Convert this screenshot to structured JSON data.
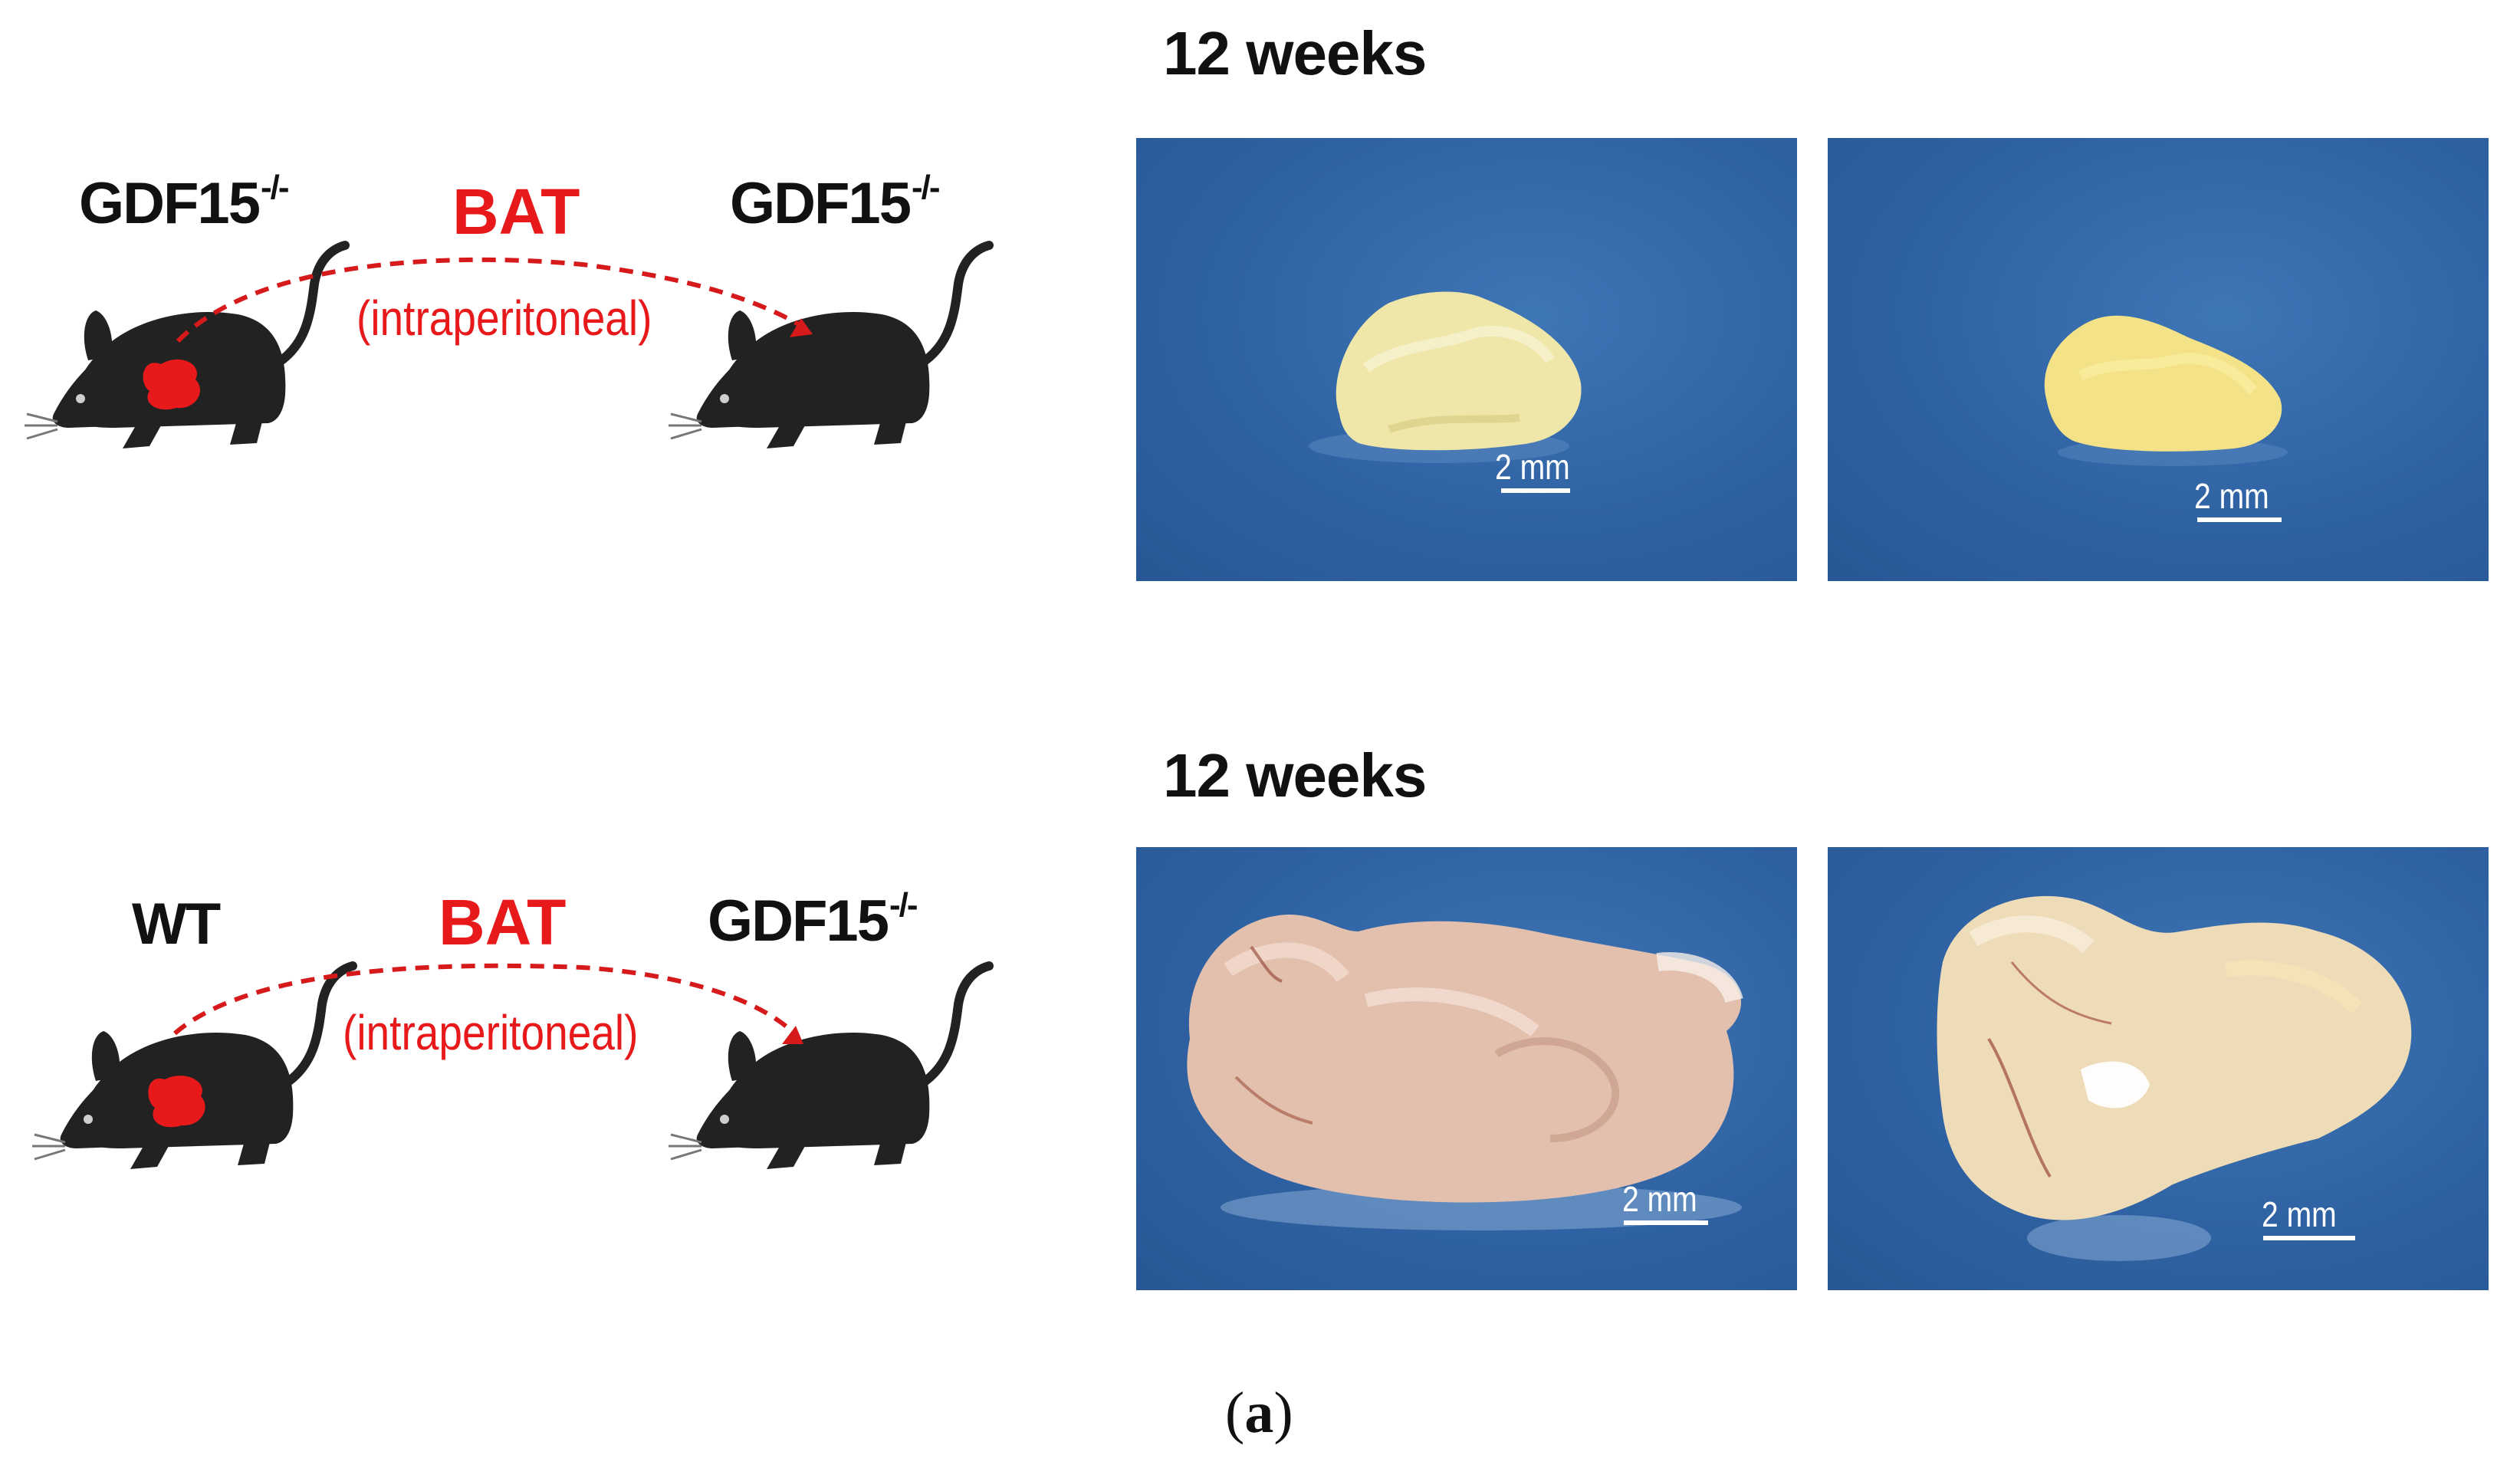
{
  "colors": {
    "accent_red": "#e8191b",
    "photo_blue": "#2f62a3",
    "mouse_black": "#222222"
  },
  "rows": [
    {
      "donor_label": "GDF15",
      "donor_superscript": "-/-",
      "graft_label": "BAT",
      "route_label": "(intraperitoneal)",
      "recipient_label": "GDF15",
      "recipient_superscript": "-/-",
      "time_label": "12 weeks",
      "photos": [
        {
          "scale_label": "2 mm"
        },
        {
          "scale_label": "2 mm"
        }
      ]
    },
    {
      "donor_label": "WT",
      "graft_label": "BAT",
      "route_label": "(intraperitoneal)",
      "recipient_label": "GDF15",
      "recipient_superscript": "-/-",
      "time_label": "12 weeks",
      "photos": [
        {
          "scale_label": "2 mm"
        },
        {
          "scale_label": "2 mm"
        }
      ]
    }
  ],
  "panel_label": {
    "open": "(",
    "letter": "a",
    "close": ")"
  }
}
